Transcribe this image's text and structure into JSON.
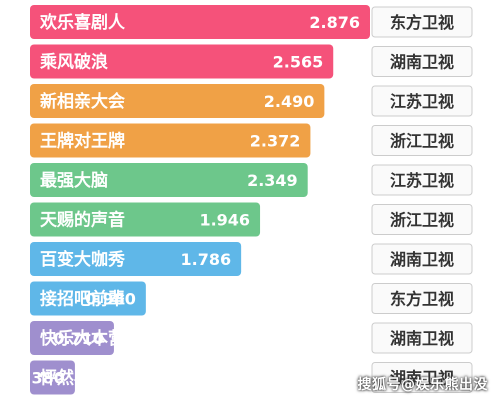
{
  "chart_data": {
    "type": "bar",
    "orientation": "horizontal",
    "categories": [
      "欢乐喜剧人",
      "乘风破浪",
      "新相亲大会",
      "王牌对王牌",
      "最强大脑",
      "天赐的声音",
      "百变大咖秀",
      "接招吧前辈",
      "快乐大本营",
      "怦然再心动"
    ],
    "values": [
      2.876,
      2.565,
      2.49,
      2.372,
      2.349,
      1.946,
      1.786,
      0.98,
      0.71,
      0.38
    ],
    "value_labels": [
      "2.876",
      "2.565",
      "2.490",
      "2.372",
      "2.349",
      "1.946",
      "1.786",
      "0.980",
      "0.710",
      "0.380"
    ],
    "channels": [
      "东方卫视",
      "湖南卫视",
      "江苏卫视",
      "浙江卫视",
      "江苏卫视",
      "浙江卫视",
      "湖南卫视",
      "东方卫视",
      "湖南卫视",
      "湖南卫视"
    ],
    "bar_colors": [
      "#f5527a",
      "#f5527a",
      "#f0a146",
      "#f0a146",
      "#6dc78b",
      "#6dc78b",
      "#5fb7e8",
      "#5fb7e8",
      "#9f8fce",
      "#9f8fce"
    ],
    "grid": false,
    "legend": "none"
  },
  "watermark": "搜狐号@娱乐熊出没",
  "colors": {
    "label_text": "#ffffff",
    "channel_text": "#333333",
    "channel_border": "#cccccc",
    "channel_bg": "#fafafa"
  }
}
